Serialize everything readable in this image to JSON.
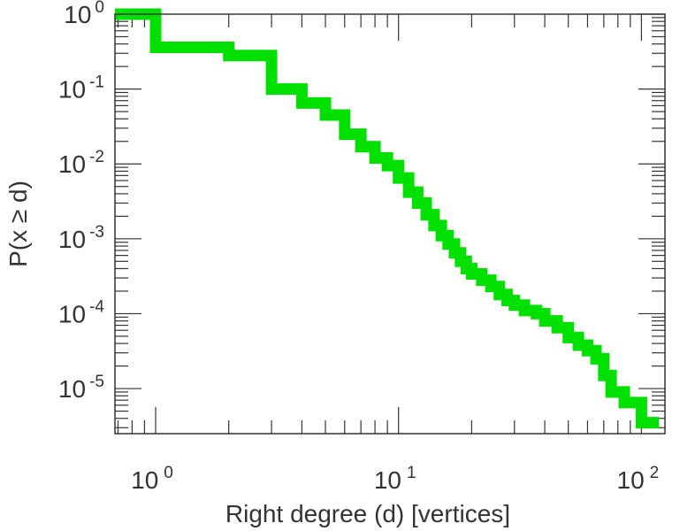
{
  "chart_data": {
    "type": "line",
    "step": "post",
    "xlabel": "Right degree (d) [vertices]",
    "ylabel": "P(x ≥ d)",
    "x_scale": "log",
    "y_scale": "log",
    "xlim": [
      0.68,
      125
    ],
    "ylim": [
      2.5e-06,
      1
    ],
    "x_ticks": [
      {
        "base": "10",
        "exp": "0",
        "value": 1
      },
      {
        "base": "10",
        "exp": "1",
        "value": 10
      },
      {
        "base": "10",
        "exp": "2",
        "value": 100
      }
    ],
    "y_ticks": [
      {
        "base": "10",
        "exp": "0",
        "value": 1
      },
      {
        "base": "10",
        "exp": "-1",
        "value": 0.1
      },
      {
        "base": "10",
        "exp": "-2",
        "value": 0.01
      },
      {
        "base": "10",
        "exp": "-3",
        "value": 0.001
      },
      {
        "base": "10",
        "exp": "-4",
        "value": 0.0001
      },
      {
        "base": "10",
        "exp": "-5",
        "value": 1e-05
      }
    ],
    "grid": false,
    "line_color": "#00e000",
    "series": [
      {
        "points": [
          [
            0.68,
            1.0
          ],
          [
            1,
            0.36
          ],
          [
            2,
            0.28
          ],
          [
            3,
            0.1
          ],
          [
            4,
            0.065
          ],
          [
            5,
            0.045
          ],
          [
            6,
            0.025
          ],
          [
            7,
            0.017
          ],
          [
            8,
            0.012
          ],
          [
            9,
            0.0095
          ],
          [
            10,
            0.0065
          ],
          [
            11,
            0.0042
          ],
          [
            12,
            0.003
          ],
          [
            13,
            0.0021
          ],
          [
            14,
            0.0015
          ],
          [
            15,
            0.0011
          ],
          [
            16,
            0.00085
          ],
          [
            17,
            0.00065
          ],
          [
            18,
            0.0005
          ],
          [
            19,
            0.0004
          ],
          [
            20,
            0.00034
          ],
          [
            22,
            0.00028
          ],
          [
            24,
            0.00023
          ],
          [
            26,
            0.00018
          ],
          [
            28,
            0.00015
          ],
          [
            30,
            0.00013
          ],
          [
            33,
            0.00011
          ],
          [
            37,
            0.0001
          ],
          [
            40,
            8e-05
          ],
          [
            45,
            6.5e-05
          ],
          [
            50,
            4.8e-05
          ],
          [
            55,
            3.8e-05
          ],
          [
            60,
            3.2e-05
          ],
          [
            65,
            2.5e-05
          ],
          [
            70,
            1.5e-05
          ],
          [
            75,
            9e-06
          ],
          [
            85,
            6.5e-06
          ],
          [
            100,
            3.5e-06
          ],
          [
            118,
            3.5e-06
          ]
        ]
      }
    ]
  }
}
